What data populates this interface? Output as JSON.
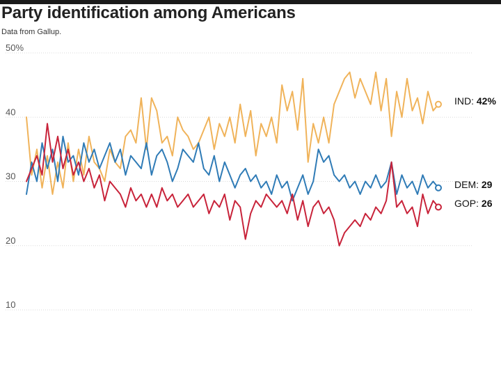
{
  "header": {
    "title": "Party identification among Americans",
    "subtitle": "Data from Gallup."
  },
  "chart_data": {
    "type": "line",
    "title": "Party identification among Americans",
    "subtitle": "Data from Gallup.",
    "xlabel": "",
    "ylabel": "",
    "ylim": [
      10,
      50
    ],
    "yticks": [
      {
        "value": 50,
        "label": "50%"
      },
      {
        "value": 40,
        "label": "40"
      },
      {
        "value": 30,
        "label": "30"
      },
      {
        "value": 20,
        "label": "20"
      },
      {
        "value": 10,
        "label": "10"
      }
    ],
    "grid": true,
    "x": [
      1,
      2,
      3,
      4,
      5,
      6,
      7,
      8,
      9,
      10,
      11,
      12,
      13,
      14,
      15,
      16,
      17,
      18,
      19,
      20,
      21,
      22,
      23,
      24,
      25,
      26,
      27,
      28,
      29,
      30,
      31,
      32,
      33,
      34,
      35,
      36,
      37,
      38,
      39,
      40,
      41,
      42,
      43,
      44,
      45,
      46,
      47,
      48,
      49,
      50,
      51,
      52,
      53,
      54,
      55,
      56,
      57,
      58,
      59,
      60,
      61,
      62,
      63,
      64,
      65,
      66,
      67,
      68,
      69,
      70,
      71,
      72,
      73,
      74,
      75,
      76,
      77,
      78,
      79,
      80
    ],
    "series": [
      {
        "name": "IND",
        "color": "#f0b35a",
        "end_label": "IND:",
        "end_value": "42%",
        "values": [
          40,
          31,
          35,
          29,
          34,
          28,
          33,
          29,
          36,
          30,
          35,
          31,
          37,
          33,
          32,
          30,
          35,
          33,
          32,
          37,
          38,
          36,
          43,
          35,
          43,
          41,
          36,
          37,
          34,
          40,
          38,
          37,
          35,
          36,
          38,
          40,
          35,
          39,
          37,
          40,
          36,
          42,
          37,
          41,
          34,
          39,
          37,
          40,
          36,
          45,
          41,
          44,
          38,
          46,
          33,
          39,
          36,
          40,
          36,
          42,
          44,
          46,
          47,
          43,
          46,
          44,
          42,
          47,
          41,
          46,
          37,
          44,
          40,
          46,
          41,
          43,
          39,
          44,
          41,
          42
        ]
      },
      {
        "name": "DEM",
        "color": "#2f7bb6",
        "end_label": "DEM:",
        "end_value": "29",
        "values": [
          28,
          33,
          30,
          36,
          32,
          35,
          30,
          37,
          33,
          34,
          31,
          36,
          33,
          35,
          32,
          34,
          36,
          33,
          35,
          31,
          34,
          33,
          32,
          36,
          31,
          34,
          35,
          33,
          30,
          32,
          35,
          34,
          33,
          36,
          32,
          31,
          34,
          30,
          33,
          31,
          29,
          31,
          32,
          30,
          31,
          29,
          30,
          28,
          31,
          29,
          30,
          27,
          29,
          31,
          28,
          30,
          35,
          33,
          34,
          31,
          30,
          31,
          29,
          30,
          28,
          30,
          29,
          31,
          29,
          30,
          33,
          28,
          31,
          29,
          30,
          28,
          31,
          29,
          30,
          29
        ]
      },
      {
        "name": "GOP",
        "color": "#c8233a",
        "end_label": "GOP:",
        "end_value": "26",
        "values": [
          30,
          32,
          34,
          31,
          39,
          33,
          37,
          32,
          35,
          31,
          33,
          30,
          32,
          29,
          31,
          27,
          30,
          29,
          28,
          26,
          29,
          27,
          28,
          26,
          28,
          26,
          29,
          27,
          28,
          26,
          27,
          28,
          26,
          27,
          28,
          25,
          27,
          26,
          28,
          24,
          27,
          26,
          21,
          25,
          27,
          26,
          28,
          27,
          26,
          27,
          25,
          28,
          24,
          27,
          23,
          26,
          27,
          25,
          26,
          24,
          20,
          22,
          23,
          24,
          23,
          25,
          24,
          26,
          25,
          27,
          33,
          26,
          27,
          25,
          26,
          23,
          28,
          25,
          27,
          26
        ]
      }
    ]
  }
}
